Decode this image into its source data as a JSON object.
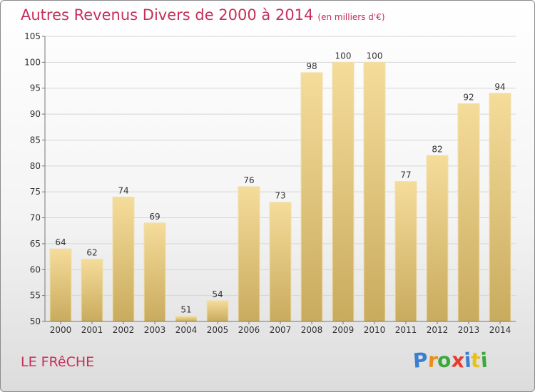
{
  "title": "Autres Revenus Divers de 2000 à 2014",
  "subtitle": "(en milliers d'€)",
  "place": "LE FRêCHE",
  "logo": {
    "letters": [
      {
        "ch": "P",
        "color": "#3a7fd0"
      },
      {
        "ch": "r",
        "color": "#e8901a"
      },
      {
        "ch": "o",
        "color": "#3aa83a"
      },
      {
        "ch": "x",
        "color": "#e83a2a"
      },
      {
        "ch": "i",
        "color": "#3a7fd0"
      },
      {
        "ch": "t",
        "color": "#e8c01a"
      },
      {
        "ch": "i",
        "color": "#3aa83a"
      }
    ]
  },
  "colors": {
    "bar_top": "#f5dc9a",
    "bar_bottom": "#c9ab5e",
    "bar_edge": "#efe0b0",
    "grid": "#d6d6d6",
    "axis": "#777777",
    "text": "#333333"
  },
  "chart_data": {
    "type": "bar",
    "categories": [
      "2000",
      "2001",
      "2002",
      "2003",
      "2004",
      "2005",
      "2006",
      "2007",
      "2008",
      "2009",
      "2010",
      "2011",
      "2012",
      "2013",
      "2014"
    ],
    "values": [
      64,
      62,
      74,
      69,
      51,
      54,
      76,
      73,
      98,
      100,
      100,
      77,
      82,
      92,
      94
    ],
    "data_labels": [
      "64",
      "62",
      "74",
      "69",
      "51",
      "54",
      "76",
      "73",
      "98",
      "100",
      "100",
      "77",
      "82",
      "92",
      "94"
    ],
    "ylim": [
      50,
      105
    ],
    "yticks": [
      50,
      55,
      60,
      65,
      70,
      75,
      80,
      85,
      90,
      95,
      100,
      105
    ],
    "ytick_labels": [
      "50",
      "55",
      "60",
      "65",
      "70",
      "75",
      "80",
      "85",
      "90",
      "95",
      "100",
      "105"
    ],
    "grid": true,
    "xlabel": "",
    "ylabel": ""
  }
}
